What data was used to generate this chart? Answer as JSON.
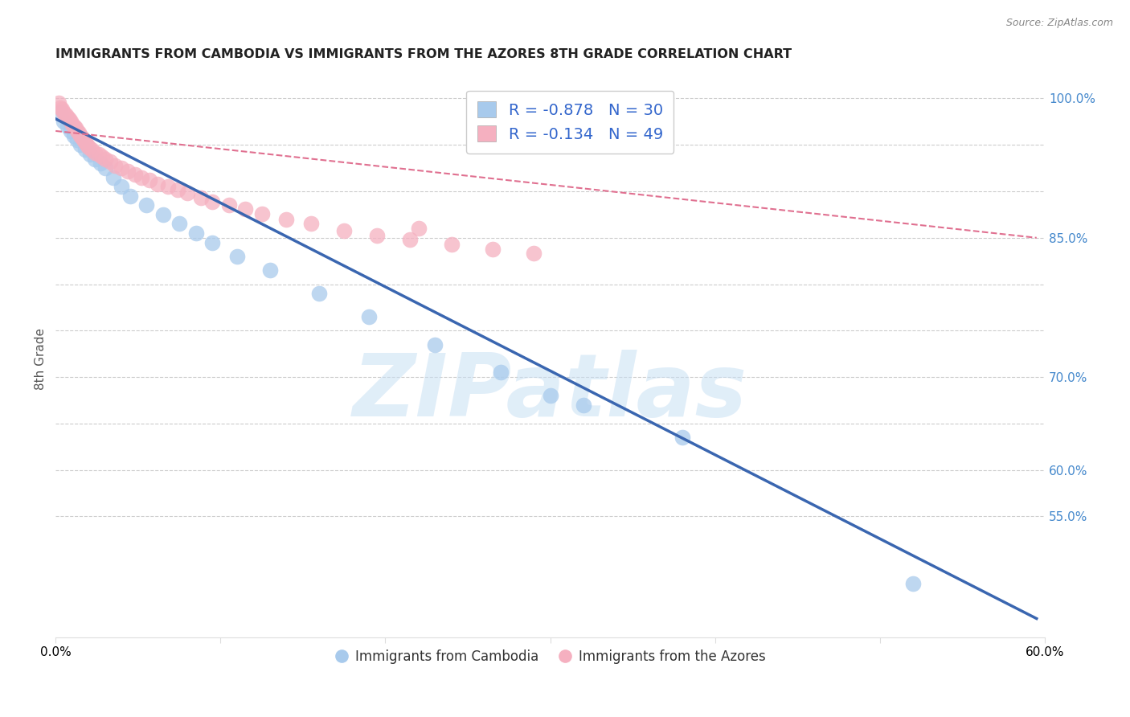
{
  "title": "IMMIGRANTS FROM CAMBODIA VS IMMIGRANTS FROM THE AZORES 8TH GRADE CORRELATION CHART",
  "source": "Source: ZipAtlas.com",
  "ylabel": "8th Grade",
  "watermark": "ZIPatlas",
  "xlim": [
    0.0,
    0.6
  ],
  "ylim": [
    0.42,
    1.02
  ],
  "x_ticks": [
    0.0,
    0.1,
    0.2,
    0.3,
    0.4,
    0.5,
    0.6
  ],
  "x_tick_labels": [
    "0.0%",
    "",
    "",
    "",
    "",
    "",
    "60.0%"
  ],
  "y_ticks_right": [
    0.55,
    0.6,
    0.65,
    0.7,
    0.75,
    0.8,
    0.85,
    0.9,
    0.95,
    1.0
  ],
  "y_tick_labels_right": [
    "55.0%",
    "60.0%",
    "",
    "70.0%",
    "",
    "",
    "85.0%",
    "",
    "",
    "100.0%"
  ],
  "legend_R_blue": "-0.878",
  "legend_N_blue": "30",
  "legend_R_pink": "-0.134",
  "legend_N_pink": "49",
  "blue_scatter_x": [
    0.003,
    0.005,
    0.007,
    0.009,
    0.011,
    0.013,
    0.015,
    0.018,
    0.021,
    0.024,
    0.027,
    0.03,
    0.035,
    0.04,
    0.045,
    0.055,
    0.065,
    0.075,
    0.085,
    0.095,
    0.11,
    0.13,
    0.16,
    0.19,
    0.23,
    0.27,
    0.3,
    0.32,
    0.38,
    0.52
  ],
  "blue_scatter_y": [
    0.985,
    0.975,
    0.97,
    0.965,
    0.96,
    0.955,
    0.95,
    0.945,
    0.94,
    0.935,
    0.93,
    0.925,
    0.915,
    0.905,
    0.895,
    0.885,
    0.875,
    0.865,
    0.855,
    0.845,
    0.83,
    0.815,
    0.79,
    0.765,
    0.735,
    0.705,
    0.68,
    0.67,
    0.635,
    0.478
  ],
  "pink_scatter_x": [
    0.002,
    0.003,
    0.004,
    0.005,
    0.006,
    0.007,
    0.008,
    0.009,
    0.01,
    0.011,
    0.012,
    0.013,
    0.014,
    0.015,
    0.016,
    0.017,
    0.018,
    0.019,
    0.02,
    0.022,
    0.024,
    0.026,
    0.028,
    0.03,
    0.033,
    0.036,
    0.04,
    0.044,
    0.048,
    0.052,
    0.057,
    0.062,
    0.068,
    0.074,
    0.08,
    0.088,
    0.095,
    0.105,
    0.115,
    0.125,
    0.14,
    0.155,
    0.175,
    0.195,
    0.215,
    0.24,
    0.265,
    0.29,
    0.22
  ],
  "pink_scatter_y": [
    0.995,
    0.99,
    0.988,
    0.985,
    0.982,
    0.98,
    0.978,
    0.975,
    0.972,
    0.97,
    0.968,
    0.965,
    0.963,
    0.96,
    0.958,
    0.955,
    0.953,
    0.95,
    0.948,
    0.945,
    0.942,
    0.94,
    0.937,
    0.935,
    0.932,
    0.928,
    0.925,
    0.922,
    0.918,
    0.915,
    0.912,
    0.908,
    0.905,
    0.902,
    0.898,
    0.893,
    0.889,
    0.885,
    0.881,
    0.876,
    0.87,
    0.865,
    0.858,
    0.852,
    0.848,
    0.843,
    0.838,
    0.833,
    0.86
  ],
  "blue_line_x": [
    0.0,
    0.595
  ],
  "blue_line_y": [
    0.978,
    0.44
  ],
  "pink_line_x": [
    0.0,
    0.595
  ],
  "pink_line_y": [
    0.965,
    0.85
  ],
  "bg_color": "#ffffff",
  "blue_color": "#A8CAEC",
  "blue_line_color": "#3A66B0",
  "pink_color": "#F5B0C0",
  "pink_dashed_color": "#E07090",
  "grid_color": "#CCCCCC",
  "right_axis_color": "#4488CC",
  "title_fontsize": 11.5,
  "source_fontsize": 9
}
